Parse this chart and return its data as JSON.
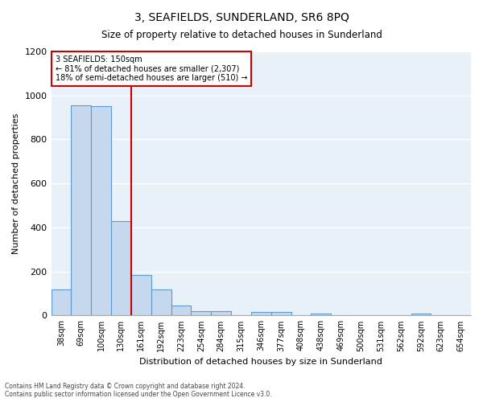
{
  "title": "3, SEAFIELDS, SUNDERLAND, SR6 8PQ",
  "subtitle": "Size of property relative to detached houses in Sunderland",
  "xlabel": "Distribution of detached houses by size in Sunderland",
  "ylabel": "Number of detached properties",
  "categories": [
    "38sqm",
    "69sqm",
    "100sqm",
    "130sqm",
    "161sqm",
    "192sqm",
    "223sqm",
    "254sqm",
    "284sqm",
    "315sqm",
    "346sqm",
    "377sqm",
    "408sqm",
    "438sqm",
    "469sqm",
    "500sqm",
    "531sqm",
    "562sqm",
    "592sqm",
    "623sqm",
    "654sqm"
  ],
  "values": [
    120,
    955,
    950,
    430,
    185,
    120,
    45,
    20,
    20,
    0,
    15,
    15,
    0,
    10,
    0,
    0,
    0,
    0,
    10,
    0,
    0
  ],
  "bar_color": "#c5d8ed",
  "bar_edge_color": "#5b9bd5",
  "background_color": "#ffffff",
  "plot_bg_color": "#e8f0f8",
  "grid_color": "#ffffff",
  "red_line_x": 3.5,
  "annotation_line1": "3 SEAFIELDS: 150sqm",
  "annotation_line2": "← 81% of detached houses are smaller (2,307)",
  "annotation_line3": "18% of semi-detached houses are larger (510) →",
  "annotation_box_color": "#ffffff",
  "annotation_box_edge": "#cc0000",
  "red_line_color": "#cc0000",
  "ylim": [
    0,
    1200
  ],
  "yticks": [
    0,
    200,
    400,
    600,
    800,
    1000,
    1200
  ],
  "footer1": "Contains HM Land Registry data © Crown copyright and database right 2024.",
  "footer2": "Contains public sector information licensed under the Open Government Licence v3.0."
}
